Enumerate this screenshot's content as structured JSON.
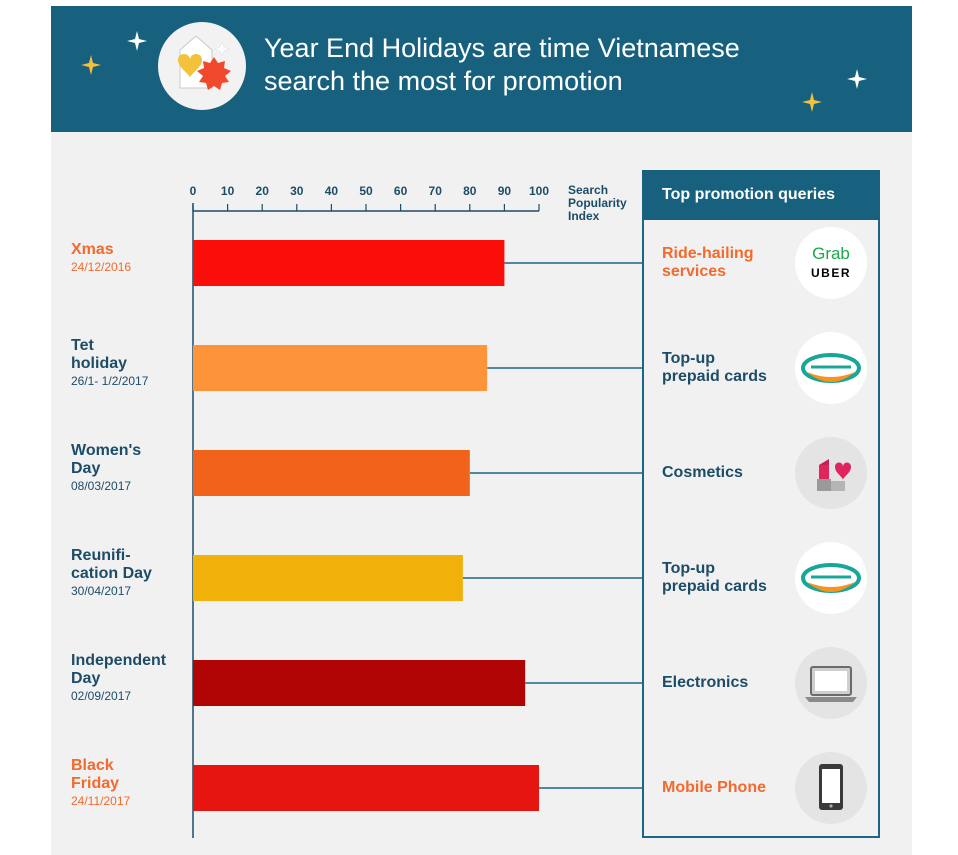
{
  "header": {
    "title": "Year End Holidays are time Vietnamese\nsearch the most for promotion",
    "colors": {
      "band": "#17617f",
      "spark": "#f4c13a"
    }
  },
  "chart_data": {
    "type": "bar",
    "orientation": "horizontal",
    "x_ticks": [
      "0",
      "10",
      "20",
      "30",
      "40",
      "50",
      "60",
      "70",
      "80",
      "90",
      "100"
    ],
    "xlim": [
      0,
      100
    ],
    "xlabel": "Search\nPopularity\nIndex",
    "axis_position": "top",
    "grid": false,
    "categories": [
      {
        "name": "Xmas",
        "date": "24/12/2016",
        "value": 90,
        "color": "#fb0e0a",
        "label_color": "#f26a2d"
      },
      {
        "name": "Tet\nholiday",
        "date": "26/1- 1/2/2017",
        "value": 85,
        "color": "#fd943a",
        "label_color": "#1d4c67"
      },
      {
        "name": "Women's\nDay",
        "date": "08/03/2017",
        "value": 80,
        "color": "#f1621a",
        "label_color": "#1d4c67"
      },
      {
        "name": "Reunifi-\ncation Day",
        "date": "30/04/2017",
        "value": 78,
        "color": "#f1b10a",
        "label_color": "#1d4c67"
      },
      {
        "name": "Independent\nDay",
        "date": "02/09/2017",
        "value": 96,
        "color": "#b10505",
        "label_color": "#1d4c67"
      },
      {
        "name": "Black\nFriday",
        "date": "24/11/2017",
        "value": 100,
        "color": "#e7150f",
        "label_color": "#f26a2d"
      }
    ]
  },
  "queries": {
    "title": "Top promotion queries",
    "items": [
      {
        "label": "Ride-hailing\nservices",
        "color": "#f26a2d",
        "icon": "grab-uber-logo-icon",
        "logo_top": "Grab",
        "logo_bottom": "UBER"
      },
      {
        "label": "Top-up\nprepaid cards",
        "color": "#1d4c67",
        "icon": "viettel-logo-icon"
      },
      {
        "label": "Cosmetics",
        "color": "#1d4c67",
        "icon": "lipstick-heart-icon"
      },
      {
        "label": "Top-up\nprepaid cards",
        "color": "#1d4c67",
        "icon": "viettel-logo-icon"
      },
      {
        "label": "Electronics",
        "color": "#1d4c67",
        "icon": "laptop-icon"
      },
      {
        "label": "Mobile Phone",
        "color": "#f26a2d",
        "icon": "mobile-phone-icon"
      }
    ]
  }
}
